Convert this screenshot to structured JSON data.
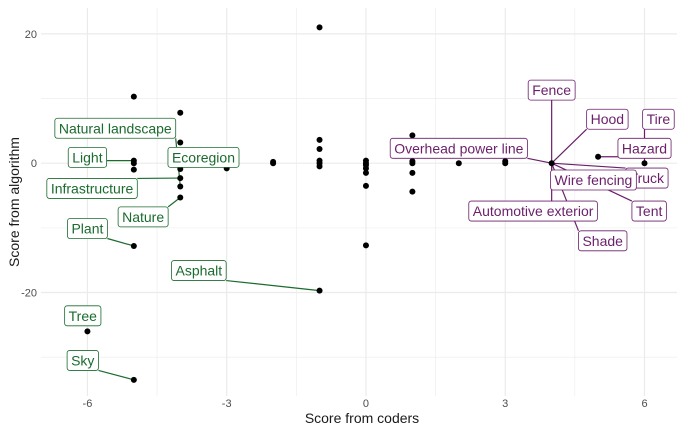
{
  "chart_data": {
    "type": "scatter",
    "title": "",
    "xlabel": "Score from coders",
    "ylabel": "Score from algorithm",
    "xlim": [
      -7.0,
      6.7
    ],
    "ylim": [
      -36,
      24
    ],
    "x_ticks": [
      -6,
      -3,
      0,
      3,
      6
    ],
    "y_ticks": [
      -20,
      0,
      20
    ],
    "x_tick_labels": [
      "-6",
      "-3",
      "0",
      "3",
      "6"
    ],
    "y_tick_labels": [
      "-20",
      "0",
      "20"
    ],
    "grid": true,
    "legend": "none",
    "colors": {
      "green": "#1a6b2e",
      "purple": "#6b1f6b",
      "point": "#000000",
      "grid": "#ebebeb"
    },
    "points": [
      {
        "x": -6,
        "y": -26
      },
      {
        "x": -5,
        "y": -33.5
      },
      {
        "x": -5,
        "y": -12.8
      },
      {
        "x": -5,
        "y": 10.3
      },
      {
        "x": -5,
        "y": 0.4
      },
      {
        "x": -5,
        "y": -1
      },
      {
        "x": -5,
        "y": 0
      },
      {
        "x": -4,
        "y": 7.8
      },
      {
        "x": -4,
        "y": 3.2
      },
      {
        "x": -4,
        "y": 0
      },
      {
        "x": -4,
        "y": -0.9
      },
      {
        "x": -4,
        "y": -2.3
      },
      {
        "x": -4,
        "y": -3.6
      },
      {
        "x": -4,
        "y": -5.3
      },
      {
        "x": -3,
        "y": -0.8
      },
      {
        "x": -2,
        "y": 0.2
      },
      {
        "x": -2,
        "y": 0
      },
      {
        "x": -1,
        "y": 21
      },
      {
        "x": -1,
        "y": 3.6
      },
      {
        "x": -1,
        "y": 2.2
      },
      {
        "x": -1,
        "y": 0.4
      },
      {
        "x": -1,
        "y": 0
      },
      {
        "x": -1,
        "y": -0.5
      },
      {
        "x": -1,
        "y": -19.7
      },
      {
        "x": 0,
        "y": 0.4
      },
      {
        "x": 0,
        "y": 0
      },
      {
        "x": 0,
        "y": -0.3
      },
      {
        "x": 0,
        "y": -0.8
      },
      {
        "x": 0,
        "y": -1.5
      },
      {
        "x": 0,
        "y": -3.5
      },
      {
        "x": 0,
        "y": -12.7
      },
      {
        "x": 1,
        "y": 4.3
      },
      {
        "x": 1,
        "y": 2
      },
      {
        "x": 1,
        "y": 0.3
      },
      {
        "x": 1,
        "y": 0
      },
      {
        "x": 1,
        "y": -1.5
      },
      {
        "x": 1,
        "y": -4.4
      },
      {
        "x": 2,
        "y": 0
      },
      {
        "x": 3,
        "y": 0.3
      },
      {
        "x": 3,
        "y": 0
      },
      {
        "x": 4,
        "y": 0
      },
      {
        "x": 5,
        "y": 1
      },
      {
        "x": 6,
        "y": 0
      }
    ],
    "labels": [
      {
        "text": "Natural landscape",
        "x": -4,
        "y": -3.6,
        "color": "green",
        "label_x": -5.4,
        "label_y": 5.4
      },
      {
        "text": "Light",
        "x": -5,
        "y": 0.4,
        "color": "green",
        "label_x": -6.0,
        "label_y": 0.9
      },
      {
        "text": "Ecoregion",
        "x": -4,
        "y": -0.9,
        "color": "green",
        "label_x": -3.5,
        "label_y": 0.9
      },
      {
        "text": "Infrastructure",
        "x": -4,
        "y": -2.3,
        "color": "green",
        "label_x": -5.9,
        "label_y": -3.9
      },
      {
        "text": "Nature",
        "x": -4,
        "y": -5.3,
        "color": "green",
        "label_x": -4.8,
        "label_y": -8.3
      },
      {
        "text": "Plant",
        "x": -5,
        "y": -12.8,
        "color": "green",
        "label_x": -6.0,
        "label_y": -10.1
      },
      {
        "text": "Asphalt",
        "x": -1,
        "y": -19.7,
        "color": "green",
        "label_x": -3.6,
        "label_y": -16.6
      },
      {
        "text": "Tree",
        "x": -6,
        "y": -26,
        "color": "green",
        "label_x": -6.1,
        "label_y": -23.6
      },
      {
        "text": "Sky",
        "x": -5,
        "y": -33.5,
        "color": "green",
        "label_x": -6.1,
        "label_y": -30.5
      },
      {
        "text": "Fence",
        "x": 4,
        "y": 0,
        "color": "purple",
        "label_x": 4.0,
        "label_y": 11.3
      },
      {
        "text": "Hood",
        "x": 4,
        "y": 0,
        "color": "purple",
        "label_x": 5.2,
        "label_y": 6.8
      },
      {
        "text": "Tire",
        "x": 6,
        "y": 0,
        "color": "purple",
        "label_x": 6.3,
        "label_y": 6.8
      },
      {
        "text": "Overhead power line",
        "x": 4,
        "y": 0,
        "color": "purple",
        "label_x": 2.0,
        "label_y": 2.3
      },
      {
        "text": "Hazard",
        "x": 5,
        "y": 1,
        "color": "purple",
        "label_x": 6.0,
        "label_y": 2.3
      },
      {
        "text": "Truck",
        "x": 4,
        "y": 0,
        "color": "purple",
        "label_x": 6.05,
        "label_y": -2.3
      },
      {
        "text": "Wire fencing",
        "x": 4,
        "y": 0,
        "color": "purple",
        "label_x": 4.9,
        "label_y": -2.6
      },
      {
        "text": "Automotive exterior",
        "x": 4,
        "y": 0,
        "color": "purple",
        "label_x": 3.6,
        "label_y": -7.4
      },
      {
        "text": "Tent",
        "x": 4,
        "y": 0,
        "color": "purple",
        "label_x": 6.1,
        "label_y": -7.4
      },
      {
        "text": "Shade",
        "x": 4,
        "y": 0,
        "color": "purple",
        "label_x": 5.1,
        "label_y": -12.0
      }
    ]
  }
}
